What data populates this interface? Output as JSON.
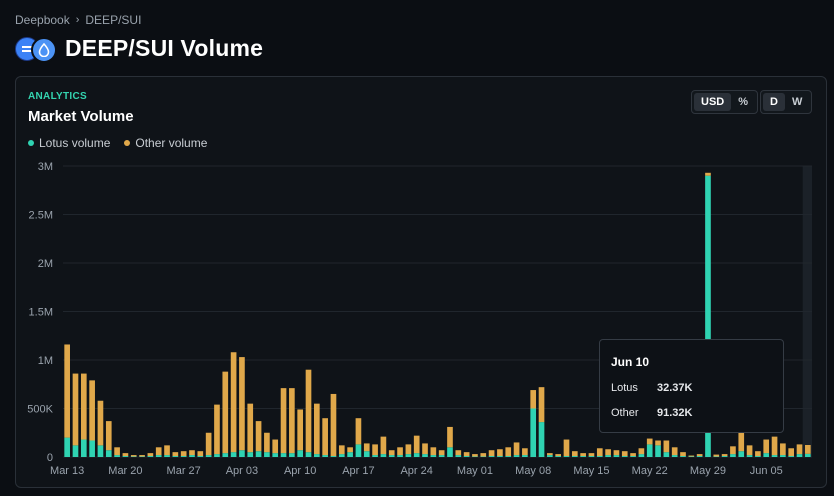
{
  "breadcrumb": {
    "root": "Deepbook",
    "current": "DEEP/SUI"
  },
  "title": "DEEP/SUI Volume",
  "icons": {
    "separator": "chevron-right-icon",
    "base_coin": "deep-coin-icon",
    "quote_coin": "sui-drop-icon"
  },
  "card": {
    "eyebrow": "ANALYTICS",
    "title": "Market Volume",
    "legend": [
      {
        "label": "Lotus volume",
        "color": "#2fd3b2"
      },
      {
        "label": "Other volume",
        "color": "#e0a84a"
      }
    ],
    "unit_toggle": {
      "options": [
        "USD",
        "%"
      ],
      "selected": "USD"
    },
    "period_toggle": {
      "options": [
        "D",
        "W"
      ],
      "selected": "D"
    }
  },
  "tooltip": {
    "date": "Jun 10",
    "rows": [
      {
        "label": "Lotus",
        "value": "32.37K"
      },
      {
        "label": "Other",
        "value": "91.32K"
      }
    ]
  },
  "chart_data": {
    "type": "bar",
    "stacked": true,
    "title": "Market Volume",
    "ylim": [
      0,
      3000000
    ],
    "y_ticks": [
      0,
      500000,
      1000000,
      1500000,
      2000000,
      2500000,
      3000000
    ],
    "y_tick_labels": [
      "0",
      "500K",
      "1M",
      "1.5M",
      "2M",
      "2.5M",
      "3M"
    ],
    "x_tick_labels": [
      "Mar 13",
      "Mar 20",
      "Mar 27",
      "Apr 03",
      "Apr 10",
      "Apr 17",
      "Apr 24",
      "May 01",
      "May 08",
      "May 15",
      "May 22",
      "May 29",
      "Jun 05"
    ],
    "x_tick_index": [
      0,
      7,
      14,
      21,
      28,
      35,
      42,
      49,
      56,
      63,
      70,
      77,
      84
    ],
    "categories": [
      "Mar 13",
      "Mar 14",
      "Mar 15",
      "Mar 16",
      "Mar 17",
      "Mar 18",
      "Mar 19",
      "Mar 20",
      "Mar 21",
      "Mar 22",
      "Mar 23",
      "Mar 24",
      "Mar 25",
      "Mar 26",
      "Mar 27",
      "Mar 28",
      "Mar 29",
      "Mar 30",
      "Mar 31",
      "Apr 01",
      "Apr 02",
      "Apr 03",
      "Apr 04",
      "Apr 05",
      "Apr 06",
      "Apr 07",
      "Apr 08",
      "Apr 09",
      "Apr 10",
      "Apr 11",
      "Apr 12",
      "Apr 13",
      "Apr 14",
      "Apr 15",
      "Apr 16",
      "Apr 17",
      "Apr 18",
      "Apr 19",
      "Apr 20",
      "Apr 21",
      "Apr 22",
      "Apr 23",
      "Apr 24",
      "Apr 25",
      "Apr 26",
      "Apr 27",
      "Apr 28",
      "Apr 29",
      "Apr 30",
      "May 01",
      "May 02",
      "May 03",
      "May 04",
      "May 05",
      "May 06",
      "May 07",
      "May 08",
      "May 09",
      "May 10",
      "May 11",
      "May 12",
      "May 13",
      "May 14",
      "May 15",
      "May 16",
      "May 17",
      "May 18",
      "May 19",
      "May 20",
      "May 21",
      "May 22",
      "May 23",
      "May 24",
      "May 25",
      "May 26",
      "May 27",
      "May 28",
      "May 29",
      "May 30",
      "May 31",
      "Jun 01",
      "Jun 02",
      "Jun 03",
      "Jun 04",
      "Jun 05",
      "Jun 06",
      "Jun 07",
      "Jun 08",
      "Jun 09",
      "Jun 10"
    ],
    "series": [
      {
        "name": "Lotus volume",
        "color": "#2fd3b2",
        "values": [
          200000,
          120000,
          180000,
          170000,
          120000,
          70000,
          20000,
          10000,
          5000,
          5000,
          10000,
          20000,
          20000,
          10000,
          10000,
          20000,
          10000,
          20000,
          30000,
          40000,
          50000,
          70000,
          50000,
          60000,
          50000,
          40000,
          40000,
          40000,
          70000,
          50000,
          30000,
          20000,
          10000,
          30000,
          50000,
          130000,
          60000,
          20000,
          30000,
          20000,
          20000,
          30000,
          40000,
          30000,
          20000,
          20000,
          100000,
          20000,
          10000,
          5000,
          5000,
          10000,
          10000,
          10000,
          20000,
          20000,
          500000,
          360000,
          20000,
          10000,
          10000,
          10000,
          10000,
          10000,
          10000,
          20000,
          20000,
          10000,
          10000,
          30000,
          130000,
          120000,
          50000,
          20000,
          10000,
          5000,
          10000,
          2900000,
          5000,
          10000,
          30000,
          60000,
          20000,
          10000,
          40000,
          20000,
          20000,
          10000,
          30000,
          32370
        ]
      },
      {
        "name": "Other volume",
        "color": "#e0a84a",
        "values": [
          960000,
          740000,
          680000,
          620000,
          460000,
          300000,
          80000,
          30000,
          15000,
          15000,
          30000,
          80000,
          100000,
          40000,
          50000,
          50000,
          50000,
          230000,
          510000,
          840000,
          1030000,
          960000,
          500000,
          310000,
          200000,
          140000,
          670000,
          670000,
          420000,
          850000,
          520000,
          380000,
          640000,
          90000,
          50000,
          270000,
          80000,
          110000,
          180000,
          50000,
          80000,
          100000,
          180000,
          110000,
          80000,
          50000,
          210000,
          50000,
          40000,
          25000,
          35000,
          60000,
          70000,
          90000,
          130000,
          70000,
          190000,
          360000,
          20000,
          20000,
          170000,
          50000,
          30000,
          30000,
          80000,
          60000,
          50000,
          50000,
          30000,
          60000,
          60000,
          50000,
          120000,
          80000,
          40000,
          10000,
          20000,
          30000,
          20000,
          20000,
          80000,
          190000,
          100000,
          50000,
          140000,
          190000,
          120000,
          80000,
          100000,
          91320
        ]
      }
    ],
    "legend_position": "top-left",
    "grid": true
  }
}
